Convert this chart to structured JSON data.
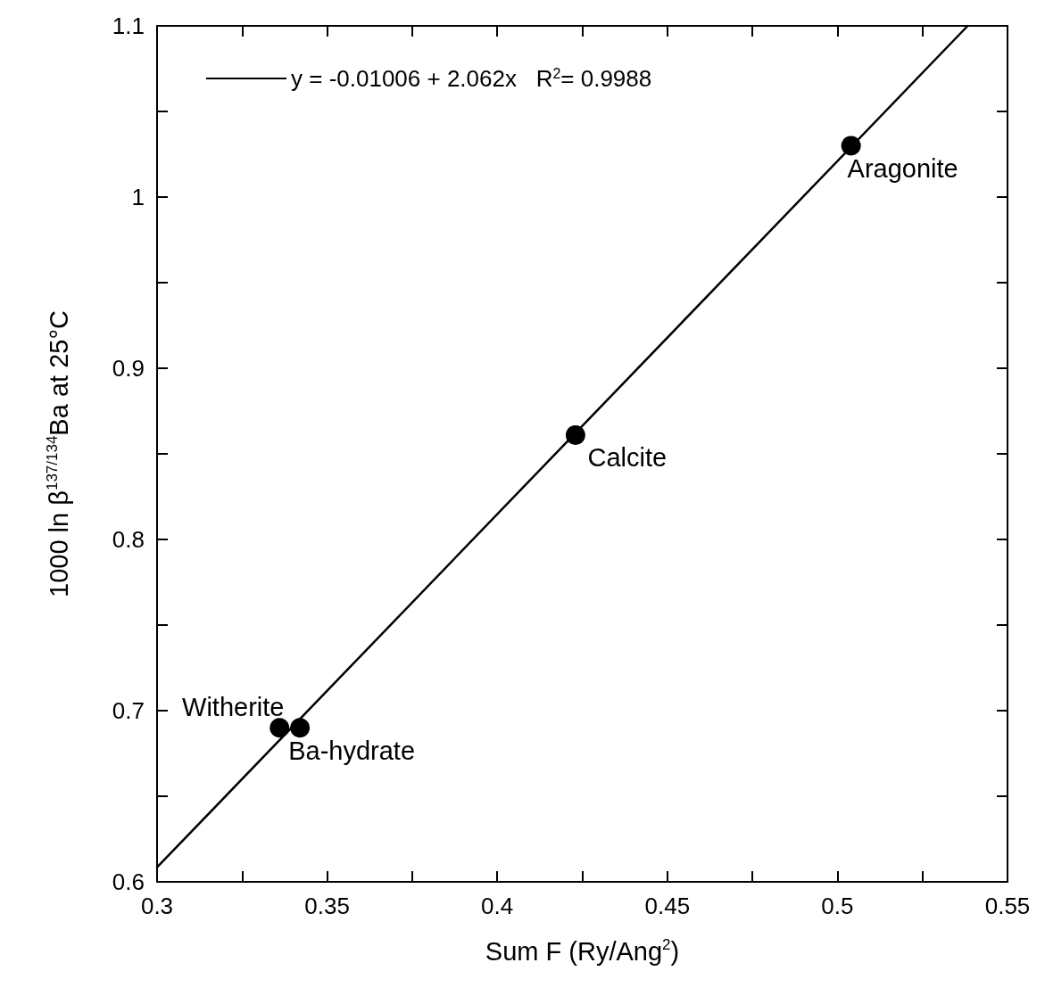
{
  "chart_data": {
    "type": "scatter",
    "xlabel": "Sum F (Ry/Ang$^{2}$)",
    "ylabel": "1000 ln β$^{137/134}$Ba at 25°C",
    "xlim": [
      0.3,
      0.55
    ],
    "ylim": [
      0.6,
      1.1
    ],
    "xticks": [
      0.3,
      {
        "value": 0.325,
        "label": null
      },
      0.35,
      {
        "value": 0.375,
        "label": null
      },
      0.4,
      {
        "value": 0.425,
        "label": null
      },
      0.45,
      {
        "value": 0.475,
        "label": null
      },
      0.5,
      {
        "value": 0.525,
        "label": null
      },
      0.55
    ],
    "yticks": [
      0.6,
      {
        "value": 0.65,
        "label": null
      },
      0.7,
      {
        "value": 0.75,
        "label": null
      },
      0.8,
      {
        "value": 0.85,
        "label": null
      },
      0.9,
      {
        "value": 0.95,
        "label": null
      },
      1,
      {
        "value": 1.05,
        "label": null
      },
      1.1
    ],
    "series": [
      {
        "color": "#000000",
        "x": [
          0.336,
          0.342,
          0.423,
          0.504
        ],
        "values": [
          0.69,
          0.69,
          0.861,
          1.03
        ]
      },
      {
        "type": "line",
        "marker": "none",
        "name": "y = -0.01006 + 2.062x   R$^{2}$= 0.9988",
        "color": "#000000",
        "x": [
          0.3,
          0.5383
        ],
        "values": [
          0.6085,
          1.1
        ]
      }
    ],
    "annotations": [
      {
        "text": "Witherite",
        "x": 0.336,
        "y": 0.69
      },
      {
        "text": "Ba-hydrate",
        "x": 0.342,
        "y": 0.69
      },
      {
        "text": "Calcite",
        "x": 0.423,
        "y": 0.861
      },
      {
        "text": "Aragonite",
        "x": 0.504,
        "y": 1.03
      }
    ],
    "marker": "circle",
    "line_style": "solid",
    "grid": false,
    "legend": "top left"
  }
}
